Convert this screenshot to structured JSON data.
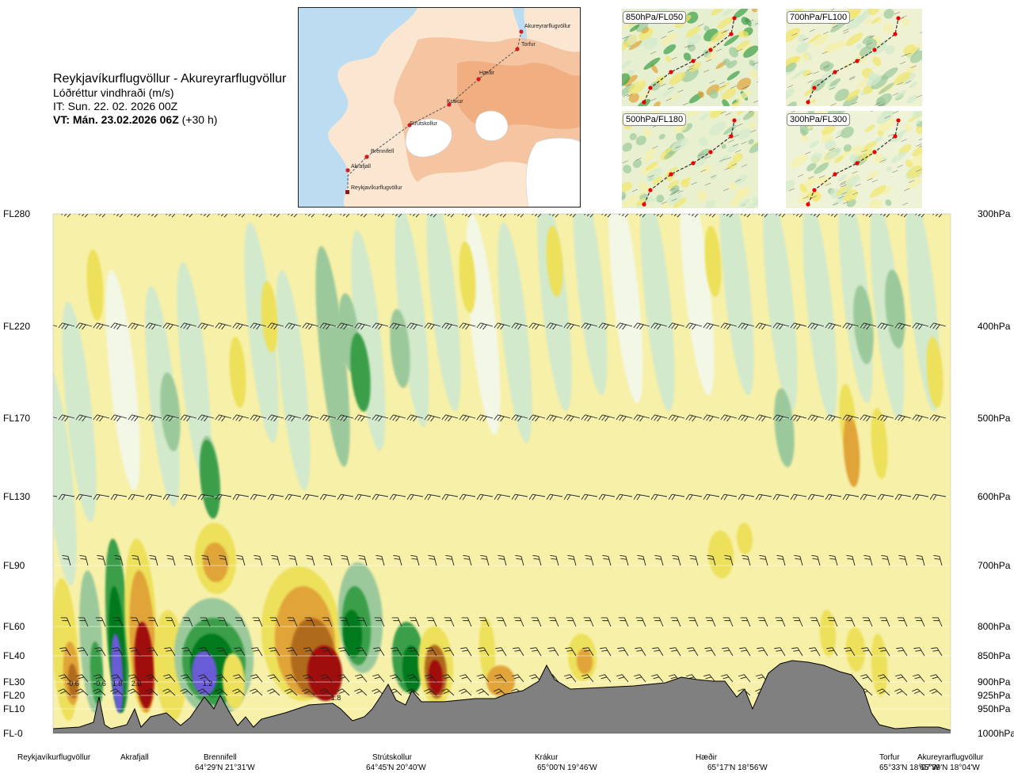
{
  "title": {
    "route": "Reykjavíkurflugvöllur - Akureyrarflugvöllur",
    "variable": "Lóðréttur vindhraði (m/s)",
    "issue_time": "IT: Sun. 22. 02. 2026 00Z",
    "valid_time": "VT: Mán. 23.02.2026 06Z",
    "lead": "(+30 h)"
  },
  "map": {
    "waypoints": [
      "Akureyrarflugvöllur",
      "Torfur",
      "Hæðir",
      "Krákur",
      "Strútskollur",
      "Brennifell",
      "Akrafjall",
      "Reykjavíkurflugvöllur"
    ],
    "colors": {
      "sea": "#bcdcf2",
      "land_low": "#fbe6d2",
      "land_high": "#f2b68c",
      "glacier": "#ffffff",
      "route": "#555555",
      "marker": "#d71920"
    }
  },
  "thumbnails": [
    {
      "id": "850",
      "label": "850hPa/FL050"
    },
    {
      "id": "700",
      "label": "700hPa/FL100"
    },
    {
      "id": "500",
      "label": "500hPa/FL180"
    },
    {
      "id": "300",
      "label": "300hPa/FL300"
    }
  ],
  "chart_data": {
    "type": "heatmap",
    "title": "Reykjavíkurflugvöllur - Akureyrarflugvöllur",
    "variable": "Lóðréttur vindhraði (m/s)",
    "y_levels": [
      {
        "fl": "FL280",
        "hpa": "300hPa"
      },
      {
        "fl": "FL220",
        "hpa": "400hPa"
      },
      {
        "fl": "FL170",
        "hpa": "500hPa"
      },
      {
        "fl": "FL130",
        "hpa": "600hPa"
      },
      {
        "fl": "FL90",
        "hpa": "700hPa"
      },
      {
        "fl": "FL60",
        "hpa": "800hPa"
      },
      {
        "fl": "FL40",
        "hpa": "850hPa"
      },
      {
        "fl": "FL30",
        "hpa": "900hPa"
      },
      {
        "fl": "FL20",
        "hpa": "925hPa"
      },
      {
        "fl": "FL10",
        "hpa": "950hPa"
      },
      {
        "fl": "FL-0",
        "hpa": "1000hPa"
      }
    ],
    "x_waypoints": [
      {
        "name": "Reykjavíkurflugvöllur",
        "coord": ""
      },
      {
        "name": "Akrafjall",
        "coord": ""
      },
      {
        "name": "Brennifell",
        "coord": "64°29'N 21°31'W"
      },
      {
        "name": "Strútskollur",
        "coord": "64°45'N 20°40'W"
      },
      {
        "name": "Krákur",
        "coord": "65°00'N 19°46'W"
      },
      {
        "name": "Hæðir",
        "coord": "65°17'N 18°56'W"
      },
      {
        "name": "Torfur",
        "coord": "65°33'N 18°07'W"
      },
      {
        "name": "Akureyrarflugvöllur",
        "coord": "65°39'N 18°04'W"
      }
    ],
    "contour_labels": [
      "-0.6",
      "-0.6",
      "1.8",
      "2.0",
      "1.2",
      "1.8"
    ],
    "colors": {
      "strong_down": "#6b5cd6",
      "down_3": "#007a1e",
      "down_2": "#3a9f48",
      "down_1": "#9bc99b",
      "down_0": "#d2e9cc",
      "neutral": "#f3f7e6",
      "up_0": "#f7f0a8",
      "up_1": "#ede05a",
      "up_2": "#e0a438",
      "up_3": "#b06a1e",
      "strong_up": "#a01010",
      "terrain": "#808080"
    }
  }
}
